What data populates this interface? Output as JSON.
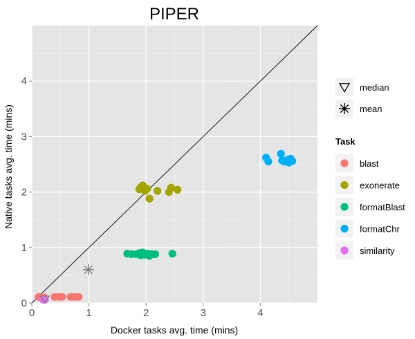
{
  "chart_data": {
    "type": "scatter",
    "title": "PIPER",
    "xlabel": "Docker tasks avg. time (mins)",
    "ylabel": "Native tasks avg. time (mins)",
    "xlim": [
      0,
      5
    ],
    "ylim": [
      0,
      5
    ],
    "x_ticks": [
      0,
      1,
      2,
      3,
      4
    ],
    "y_ticks": [
      0,
      1,
      2,
      3,
      4
    ],
    "grid": true,
    "background": "#e5e5e5",
    "legend_title": "Task",
    "legend_position": "right",
    "reference_line": {
      "type": "identity",
      "label": ""
    },
    "symbol_legend": [
      {
        "name": "median",
        "shape": "triangle-down"
      },
      {
        "name": "mean",
        "shape": "asterisk"
      }
    ],
    "series": [
      {
        "name": "blast",
        "color": "#F8766D",
        "points": [
          [
            0.12,
            0.11
          ],
          [
            0.22,
            0.1
          ],
          [
            0.4,
            0.11
          ],
          [
            0.48,
            0.11
          ],
          [
            0.53,
            0.11
          ],
          [
            0.68,
            0.11
          ],
          [
            0.75,
            0.11
          ],
          [
            0.82,
            0.11
          ]
        ]
      },
      {
        "name": "exonerate",
        "color": "#A3A500",
        "points": [
          [
            1.88,
            2.05
          ],
          [
            1.94,
            2.12
          ],
          [
            1.98,
            2.02
          ],
          [
            2.02,
            2.06
          ],
          [
            2.06,
            1.88
          ],
          [
            2.2,
            2.02
          ],
          [
            2.4,
            2.0
          ],
          [
            2.44,
            2.08
          ],
          [
            2.55,
            2.04
          ],
          [
            1.9,
            2.08
          ]
        ]
      },
      {
        "name": "formatBlast",
        "color": "#00BF7D",
        "points": [
          [
            1.67,
            0.89
          ],
          [
            1.75,
            0.88
          ],
          [
            1.83,
            0.88
          ],
          [
            1.88,
            0.9
          ],
          [
            1.91,
            0.86
          ],
          [
            1.94,
            0.91
          ],
          [
            1.98,
            0.87
          ],
          [
            2.03,
            0.89
          ],
          [
            2.06,
            0.85
          ],
          [
            2.1,
            0.88
          ],
          [
            2.16,
            0.88
          ],
          [
            2.46,
            0.89
          ]
        ]
      },
      {
        "name": "formatChr",
        "color": "#00B0F6",
        "points": [
          [
            4.1,
            2.62
          ],
          [
            4.14,
            2.55
          ],
          [
            4.36,
            2.69
          ],
          [
            4.38,
            2.57
          ],
          [
            4.42,
            2.55
          ],
          [
            4.47,
            2.58
          ],
          [
            4.5,
            2.53
          ],
          [
            4.53,
            2.6
          ],
          [
            4.56,
            2.56
          ]
        ]
      },
      {
        "name": "similarity",
        "color": "#E76BF3",
        "points": [
          [
            0.2,
            0.06
          ],
          [
            0.23,
            0.06
          ]
        ]
      }
    ],
    "median": [
      0.23,
      0.07
    ],
    "mean": [
      0.99,
      0.6
    ],
    "marker_stat_color": "#7f7f7f"
  }
}
